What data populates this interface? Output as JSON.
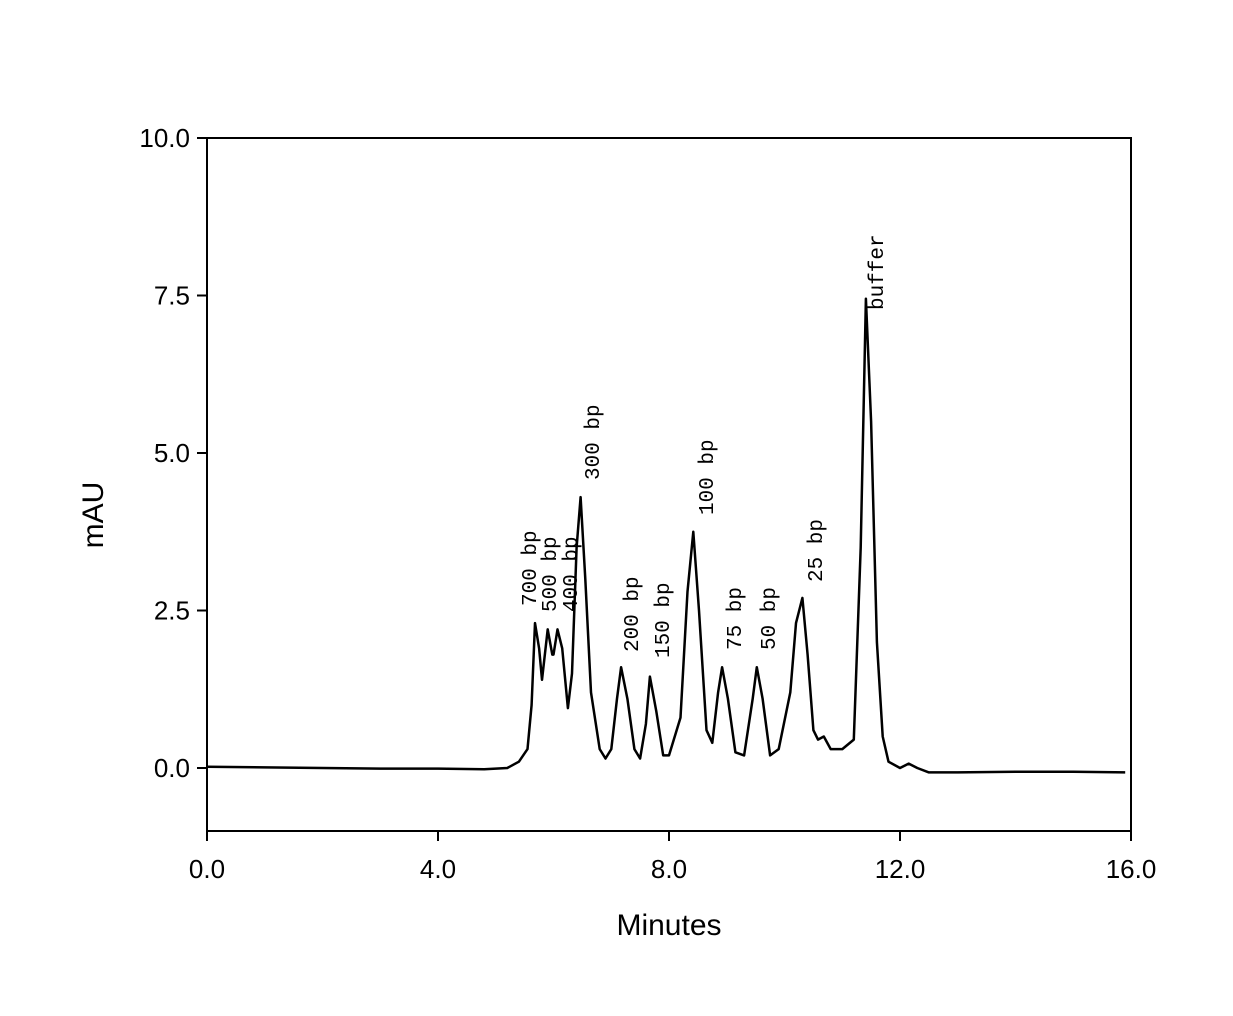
{
  "chart_data": {
    "type": "line",
    "xlabel": "Minutes",
    "ylabel": "mAU",
    "xlim": [
      0,
      16
    ],
    "ylim": [
      -1,
      10
    ],
    "xticks": [
      {
        "value": 0,
        "label": "0.0"
      },
      {
        "value": 4,
        "label": "4.0"
      },
      {
        "value": 8,
        "label": "8.0"
      },
      {
        "value": 12,
        "label": "12.0"
      },
      {
        "value": 16,
        "label": "16.0"
      }
    ],
    "yticks": [
      {
        "value": 0,
        "label": "0.0"
      },
      {
        "value": 2.5,
        "label": "2.5"
      },
      {
        "value": 5,
        "label": "5.0"
      },
      {
        "value": 7.5,
        "label": "7.5"
      },
      {
        "value": 10,
        "label": "10.0"
      }
    ],
    "color": "#000000",
    "x": [
      0,
      1,
      2,
      3,
      4,
      4.8,
      5.2,
      5.4,
      5.55,
      5.62,
      5.68,
      5.75,
      5.8,
      5.9,
      5.98,
      6.0,
      6.07,
      6.15,
      6.25,
      6.32,
      6.4,
      6.47,
      6.55,
      6.65,
      6.8,
      6.9,
      7.0,
      7.1,
      7.17,
      7.28,
      7.4,
      7.5,
      7.6,
      7.67,
      7.78,
      7.9,
      8.0,
      8.2,
      8.32,
      8.42,
      8.52,
      8.65,
      8.75,
      8.85,
      8.92,
      9.02,
      9.15,
      9.3,
      9.45,
      9.52,
      9.62,
      9.75,
      9.9,
      10.1,
      10.2,
      10.31,
      10.4,
      10.5,
      10.58,
      10.68,
      10.8,
      11.0,
      11.2,
      11.32,
      11.41,
      11.5,
      11.6,
      11.7,
      11.8,
      12.0,
      12.15,
      12.3,
      12.5,
      13,
      14,
      15,
      15.9
    ],
    "values": [
      0.02,
      0.01,
      0,
      -0.01,
      -0.01,
      -0.02,
      0,
      0.1,
      0.3,
      1.0,
      2.3,
      1.9,
      1.4,
      2.2,
      1.8,
      1.8,
      2.2,
      1.9,
      0.95,
      1.5,
      3.5,
      4.3,
      3.0,
      1.2,
      0.3,
      0.15,
      0.3,
      1.1,
      1.6,
      1.1,
      0.3,
      0.15,
      0.7,
      1.45,
      0.9,
      0.2,
      0.2,
      0.8,
      2.8,
      3.75,
      2.5,
      0.6,
      0.4,
      1.2,
      1.6,
      1.1,
      0.25,
      0.2,
      1.1,
      1.6,
      1.1,
      0.2,
      0.3,
      1.2,
      2.3,
      2.7,
      1.8,
      0.6,
      0.45,
      0.5,
      0.3,
      0.3,
      0.45,
      3.5,
      7.45,
      5.5,
      2.0,
      0.5,
      0.1,
      0,
      0.07,
      0,
      -0.07,
      -0.07,
      -0.06,
      -0.06,
      -0.07
    ],
    "annotations": [
      "700 bp",
      "500 bp",
      "400 bp",
      "300 bp",
      "200 bp",
      "150 bp",
      "100 bp",
      "75 bp",
      "50 bp",
      "25 bp",
      "buffer"
    ]
  }
}
